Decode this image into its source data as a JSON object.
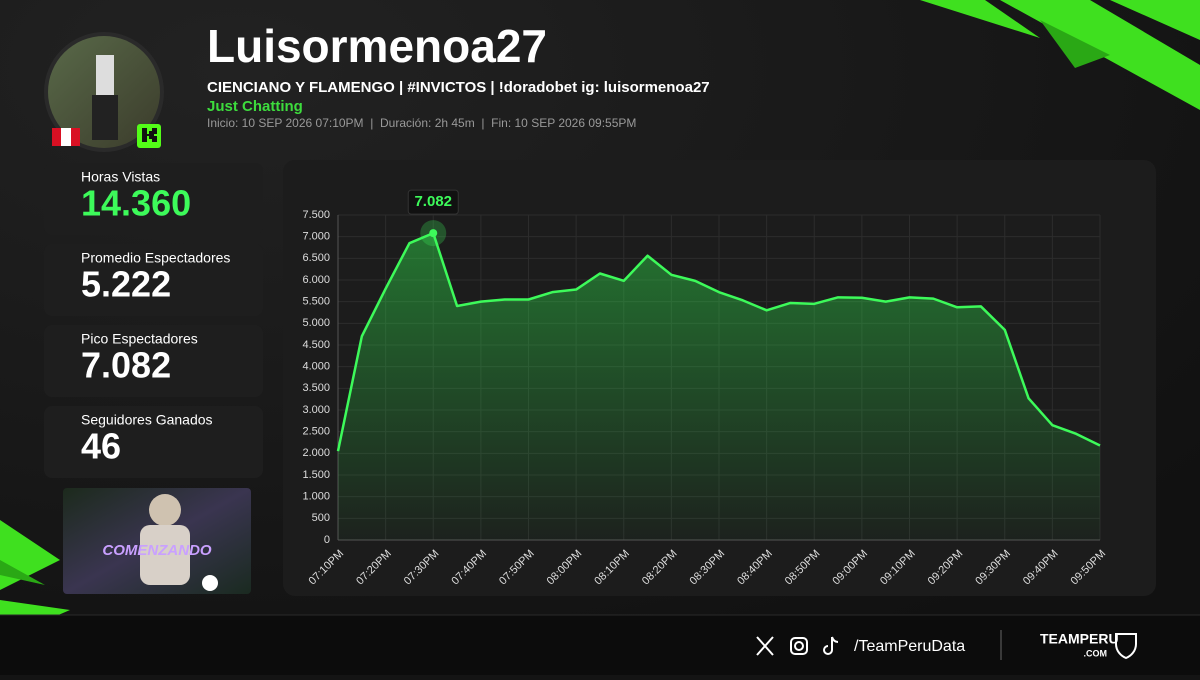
{
  "header": {
    "title": "Luisormenoa27",
    "subtitle": "CIENCIANO Y FLAMENGO | #INVICTOS | !doradobet ig: luisormenoa27",
    "category": "Just Chatting",
    "info": "Inicio: 10 SEP 2026 07:10PM  |  Duración: 2h 45m  |  Fin: 10 SEP 2026 09:55PM"
  },
  "stats": [
    {
      "label": "Horas Vistas",
      "value": "14.360"
    },
    {
      "label": "Promedio Espectadores",
      "value": "5.222"
    },
    {
      "label": "Pico Espectadores",
      "value": "7.082"
    },
    {
      "label": "Seguidores Ganados",
      "value": "46"
    }
  ],
  "thumbnail_text": "COMENZANDO",
  "footer": {
    "handle": "/TeamPeruData",
    "brand": "TEAMPERU",
    "brand_sub": ".COM"
  },
  "chart_data": {
    "type": "line",
    "color": "#3dfa5a",
    "grid": true,
    "categories": [
      "07:10PM",
      null,
      "07:20PM",
      null,
      "07:30PM",
      null,
      "07:40PM",
      null,
      "07:50PM",
      null,
      "08:00PM",
      null,
      "08:10PM",
      null,
      "08:20PM",
      null,
      "08:30PM",
      null,
      "08:40PM",
      null,
      "08:50PM",
      null,
      "09:00PM",
      null,
      "09:10PM",
      null,
      "09:20PM",
      null,
      "09:30PM",
      null,
      "09:40PM",
      null,
      "09:50PM"
    ],
    "values": [
      2050,
      4700,
      5800,
      6850,
      7082,
      5400,
      5500,
      5550,
      5550,
      5720,
      5780,
      6150,
      5980,
      6560,
      6120,
      5980,
      5720,
      5530,
      5300,
      5470,
      5450,
      5600,
      5590,
      5500,
      5600,
      5570,
      5370,
      5390,
      4850,
      3270,
      2650,
      2450,
      2180
    ],
    "value_labels": [
      null,
      null,
      null,
      null,
      "7.082",
      null,
      null,
      null,
      null,
      null,
      null,
      null,
      null,
      null,
      null,
      null,
      null,
      null,
      null,
      null,
      null,
      null,
      null,
      null,
      null,
      null,
      null,
      null,
      null,
      null,
      null,
      null,
      null
    ],
    "ylim": [
      0,
      7500
    ],
    "yticks": [
      0,
      500,
      {
        "value": 1000,
        "label": "1.000"
      },
      {
        "value": 1500,
        "label": "1.500"
      },
      {
        "value": 2000,
        "label": "2.000"
      },
      {
        "value": 2500,
        "label": "2.500"
      },
      {
        "value": 3000,
        "label": "3.000"
      },
      {
        "value": 3500,
        "label": "3.500"
      },
      {
        "value": 4000,
        "label": "4.000"
      },
      {
        "value": 4500,
        "label": "4.500"
      },
      {
        "value": 5000,
        "label": "5.000"
      },
      {
        "value": 5500,
        "label": "5.500"
      },
      {
        "value": 6000,
        "label": "6.000"
      },
      {
        "value": 6500,
        "label": "6.500"
      },
      {
        "value": 7000,
        "label": "7.000"
      },
      {
        "value": 7500,
        "label": "7.500"
      }
    ]
  }
}
